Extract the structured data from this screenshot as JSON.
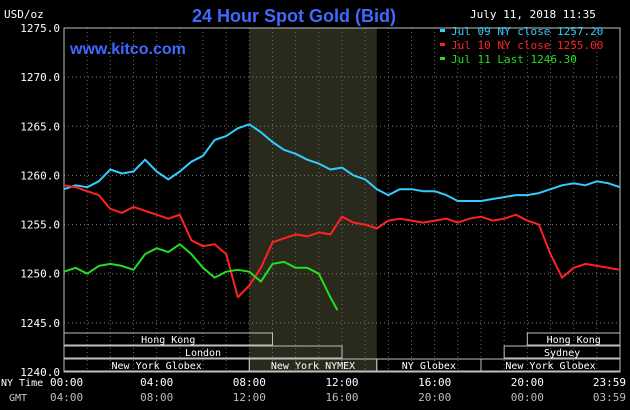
{
  "header": {
    "title": "24 Hour Spot Gold (Bid)",
    "date_time": "July 11, 2018 11:35",
    "site": "www.kitco.com",
    "unit": "USD/oz"
  },
  "legend": [
    {
      "text": "Jul 09 NY close 1257.20",
      "color": "#33ccff"
    },
    {
      "text": "Jul 10 NY close 1255.00",
      "color": "#ff2222"
    },
    {
      "text": "Jul 11 Last 1246.30",
      "color": "#22dd22"
    }
  ],
  "axis_labels": {
    "ny_time": "NY Time",
    "gmt": "GMT"
  },
  "chart_data": {
    "type": "line",
    "title": "24 Hour Spot Gold (Bid)",
    "ylabel": "USD/oz",
    "ylim": [
      1240,
      1275
    ],
    "xlim": [
      0,
      24
    ],
    "y_ticks": [
      "1240.0",
      "1245.0",
      "1250.0",
      "1255.0",
      "1260.0",
      "1265.0",
      "1270.0",
      "1275.0"
    ],
    "y_tick_values": [
      1240,
      1245,
      1250,
      1255,
      1260,
      1265,
      1270,
      1275
    ],
    "x_ticks_ny": [
      "00:00",
      "04:00",
      "08:00",
      "12:00",
      "16:00",
      "20:00",
      "23:59"
    ],
    "x_ticks_gmt": [
      "04:00",
      "08:00",
      "12:00",
      "16:00",
      "20:00",
      "00:00",
      "03:59"
    ],
    "x_tick_hours": [
      0,
      4,
      8,
      12,
      16,
      20,
      24
    ],
    "grid": true,
    "highlight_range_hours": [
      8.0,
      13.5
    ],
    "series": [
      {
        "name": "Jul 09 NY close 1257.20",
        "color": "#33ccff",
        "x": [
          0,
          0.5,
          1,
          1.5,
          2,
          2.5,
          3,
          3.5,
          4,
          4.5,
          5,
          5.5,
          6,
          6.5,
          7,
          7.5,
          8,
          8.5,
          9,
          9.5,
          10,
          10.5,
          11,
          11.5,
          12,
          12.5,
          13,
          13.5,
          14,
          14.5,
          15,
          15.5,
          16,
          16.5,
          17,
          17.5,
          18,
          18.5,
          19,
          19.5,
          20,
          20.5,
          21,
          21.5,
          22,
          22.5,
          23,
          23.5,
          24
        ],
        "y": [
          1258.6,
          1259.0,
          1258.8,
          1259.4,
          1260.6,
          1260.2,
          1260.4,
          1261.6,
          1260.4,
          1259.6,
          1260.4,
          1261.4,
          1262.0,
          1263.6,
          1264.0,
          1264.8,
          1265.2,
          1264.4,
          1263.4,
          1262.6,
          1262.2,
          1261.6,
          1261.2,
          1260.6,
          1260.8,
          1260.0,
          1259.6,
          1258.6,
          1258.0,
          1258.6,
          1258.6,
          1258.4,
          1258.4,
          1258.0,
          1257.4,
          1257.4,
          1257.4,
          1257.6,
          1257.8,
          1258.0,
          1258.0,
          1258.2,
          1258.6,
          1259.0,
          1259.2,
          1259.0,
          1259.4,
          1259.2,
          1258.8
        ]
      },
      {
        "name": "Jul 10 NY close 1255.00",
        "color": "#ff2222",
        "x": [
          0,
          0.5,
          1,
          1.5,
          2,
          2.5,
          3,
          3.5,
          4,
          4.5,
          5,
          5.5,
          6,
          6.5,
          7,
          7.5,
          8,
          8.5,
          9,
          9.5,
          10,
          10.5,
          11,
          11.5,
          12,
          12.5,
          13,
          13.5,
          14,
          14.5,
          15,
          15.5,
          16,
          16.5,
          17,
          17.5,
          18,
          18.5,
          19,
          19.5,
          20,
          20.5,
          21,
          21.5,
          22,
          22.5,
          23,
          23.5,
          24
        ],
        "y": [
          1259.0,
          1258.8,
          1258.4,
          1258.0,
          1256.6,
          1256.2,
          1256.8,
          1256.4,
          1256.0,
          1255.6,
          1256.0,
          1253.4,
          1252.8,
          1253.0,
          1252.0,
          1247.6,
          1248.8,
          1250.6,
          1253.2,
          1253.6,
          1254.0,
          1253.8,
          1254.2,
          1254.0,
          1255.8,
          1255.2,
          1255.0,
          1254.6,
          1255.4,
          1255.6,
          1255.4,
          1255.2,
          1255.4,
          1255.6,
          1255.2,
          1255.6,
          1255.8,
          1255.4,
          1255.6,
          1256.0,
          1255.4,
          1255.0,
          1252.0,
          1249.6,
          1250.6,
          1251.0,
          1250.8,
          1250.6,
          1250.4
        ]
      },
      {
        "name": "Jul 11 Last 1246.30",
        "color": "#22dd22",
        "x": [
          0,
          0.5,
          1,
          1.5,
          2,
          2.5,
          3,
          3.5,
          4,
          4.5,
          5,
          5.5,
          6,
          6.5,
          7,
          7.5,
          8,
          8.5,
          9,
          9.5,
          10,
          10.5,
          11,
          11.5,
          11.8
        ],
        "y": [
          1250.2,
          1250.6,
          1250.0,
          1250.8,
          1251.0,
          1250.8,
          1250.4,
          1252.0,
          1252.6,
          1252.2,
          1253.0,
          1252.0,
          1250.6,
          1249.6,
          1250.2,
          1250.4,
          1250.2,
          1249.2,
          1251.0,
          1251.2,
          1250.6,
          1250.6,
          1250.0,
          1247.6,
          1246.3
        ]
      }
    ],
    "sessions": [
      {
        "label": "Hong Kong",
        "start": 0.0,
        "end": 9.0,
        "row": 0
      },
      {
        "label": "London",
        "start": 0.0,
        "end": 12.0,
        "row": 1
      },
      {
        "label": "New York Globex",
        "start": 0.0,
        "end": 8.0,
        "row": 2
      },
      {
        "label": "New York NYMEX",
        "start": 8.0,
        "end": 13.5,
        "row": 2
      },
      {
        "label": "NY Globex",
        "start": 13.5,
        "end": 18.0,
        "row": 2
      },
      {
        "label": "Hong Kong",
        "start": 20.0,
        "end": 24.0,
        "row": 0
      },
      {
        "label": "Sydney",
        "start": 19.0,
        "end": 24.0,
        "row": 1
      },
      {
        "label": "New York Globex",
        "start": 18.0,
        "end": 24.0,
        "row": 2
      }
    ]
  }
}
